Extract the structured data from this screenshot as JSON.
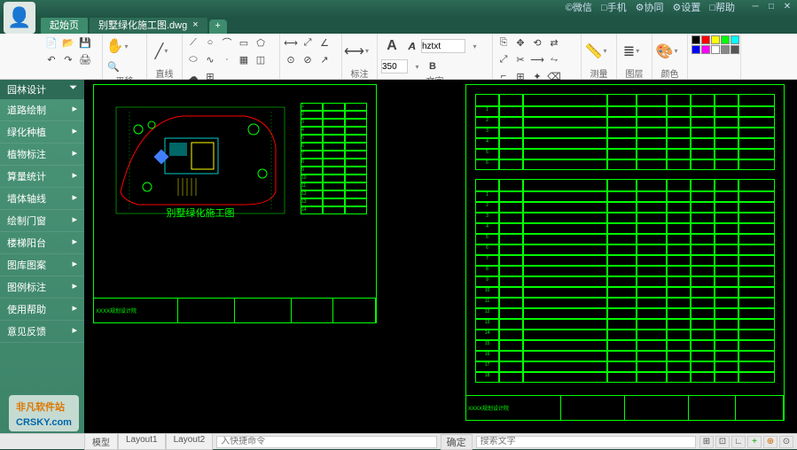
{
  "title_menu": [
    "©微信",
    "□手机",
    "⚙协同",
    "⚙设置",
    "□帮助"
  ],
  "tabs": [
    {
      "label": "起始页",
      "active": false
    },
    {
      "label": "别墅绿化施工图.dwg",
      "active": true
    }
  ],
  "ribbon_groups": [
    {
      "label": "平移"
    },
    {
      "label": "直线"
    },
    {
      "label": ""
    },
    {
      "label": "标注"
    },
    {
      "label": "文字"
    },
    {
      "label": ""
    },
    {
      "label": "测量"
    },
    {
      "label": "图层"
    },
    {
      "label": "颜色"
    }
  ],
  "font_name": "hztxt",
  "font_size": "350",
  "sidebar_header": "园林设计",
  "sidebar_items": [
    "道路绘制",
    "绿化种植",
    "植物标注",
    "算量统计",
    "墙体轴线",
    "绘制门窗",
    "楼梯阳台",
    "图库图案",
    "图例标注",
    "使用帮助",
    "意见反馈"
  ],
  "layout_tabs": [
    "模型",
    "Layout1",
    "Layout2"
  ],
  "cmd_placeholder": "入快捷命令",
  "cmd_ok": "确定",
  "search_placeholder": "搜索文字",
  "titleblock_text": "XXXX规划设计院",
  "plan_label": "别墅绿化施工图",
  "colors": [
    "#000",
    "#f00",
    "#ff0",
    "#0f0",
    "#0ff",
    "#00f",
    "#f0f",
    "#fff",
    "#888",
    "#555"
  ],
  "cad_green": "#00ff00",
  "cad_cyan": "#00ffff",
  "cad_red": "#ff0000",
  "cad_yellow": "#ffff00",
  "cad_blue": "#4080ff",
  "watermark_cn": "非凡软件站",
  "watermark_en": "CRSKY.com"
}
